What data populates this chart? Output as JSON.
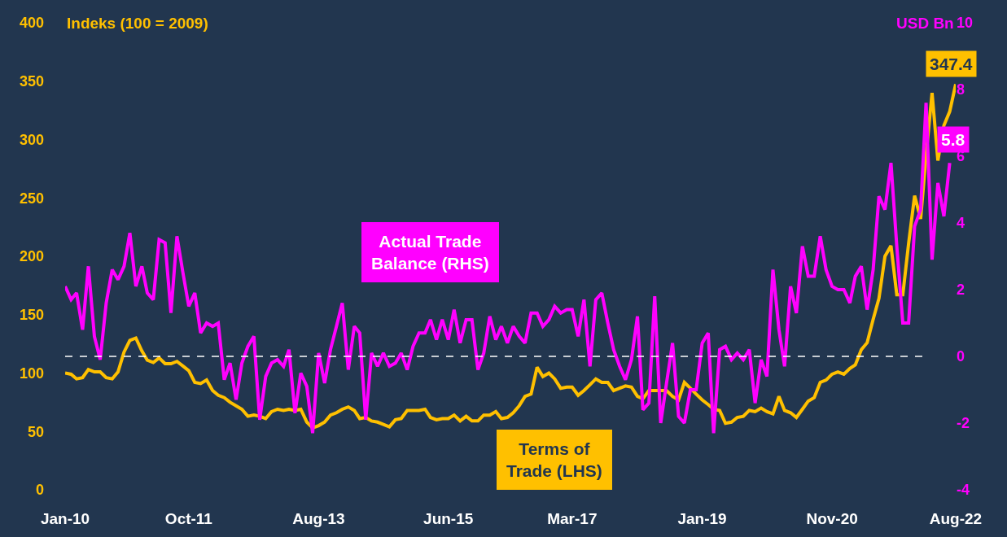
{
  "chart_data": {
    "type": "line",
    "ylabel": "Indeks (100 = 2009)",
    "y2label": "USD Bn",
    "x": [
      "2010-01",
      "2010-02",
      "2010-03",
      "2010-04",
      "2010-05",
      "2010-06",
      "2010-07",
      "2010-08",
      "2010-09",
      "2010-10",
      "2010-11",
      "2010-12",
      "2011-01",
      "2011-02",
      "2011-03",
      "2011-04",
      "2011-05",
      "2011-06",
      "2011-07",
      "2011-08",
      "2011-09",
      "2011-10",
      "2011-11",
      "2011-12",
      "2012-01",
      "2012-02",
      "2012-03",
      "2012-04",
      "2012-05",
      "2012-06",
      "2012-07",
      "2012-08",
      "2012-09",
      "2012-10",
      "2012-11",
      "2012-12",
      "2013-01",
      "2013-02",
      "2013-03",
      "2013-04",
      "2013-05",
      "2013-06",
      "2013-07",
      "2013-08",
      "2013-09",
      "2013-10",
      "2013-11",
      "2013-12",
      "2014-01",
      "2014-02",
      "2014-03",
      "2014-04",
      "2014-05",
      "2014-06",
      "2014-07",
      "2014-08",
      "2014-09",
      "2014-10",
      "2014-11",
      "2014-12",
      "2015-01",
      "2015-02",
      "2015-03",
      "2015-04",
      "2015-05",
      "2015-06",
      "2015-07",
      "2015-08",
      "2015-09",
      "2015-10",
      "2015-11",
      "2015-12",
      "2016-01",
      "2016-02",
      "2016-03",
      "2016-04",
      "2016-05",
      "2016-06",
      "2016-07",
      "2016-08",
      "2016-09",
      "2016-10",
      "2016-11",
      "2016-12",
      "2017-01",
      "2017-02",
      "2017-03",
      "2017-04",
      "2017-05",
      "2017-06",
      "2017-07",
      "2017-08",
      "2017-09",
      "2017-10",
      "2017-11",
      "2017-12",
      "2018-01",
      "2018-02",
      "2018-03",
      "2018-04",
      "2018-05",
      "2018-06",
      "2018-07",
      "2018-08",
      "2018-09",
      "2018-10",
      "2018-11",
      "2018-12",
      "2019-01",
      "2019-02",
      "2019-03",
      "2019-04",
      "2019-05",
      "2019-06",
      "2019-07",
      "2019-08",
      "2019-09",
      "2019-10",
      "2019-11",
      "2019-12",
      "2020-01",
      "2020-02",
      "2020-03",
      "2020-04",
      "2020-05",
      "2020-06",
      "2020-07",
      "2020-08",
      "2020-09",
      "2020-10",
      "2020-11",
      "2020-12",
      "2021-01",
      "2021-02",
      "2021-03",
      "2021-04",
      "2021-05",
      "2021-06",
      "2021-07",
      "2021-08",
      "2021-09",
      "2021-10",
      "2021-11",
      "2021-12",
      "2022-01",
      "2022-02",
      "2022-03",
      "2022-04",
      "2022-05",
      "2022-06",
      "2022-07",
      "2022-08"
    ],
    "xlim": [
      "2010-01",
      "2022-08"
    ],
    "xticks": [
      {
        "value": "2010-01",
        "label": "Jan-10"
      },
      {
        "value": "2011-10",
        "label": "Oct-11"
      },
      {
        "value": "2013-08",
        "label": "Aug-13"
      },
      {
        "value": "2015-06",
        "label": "Jun-15"
      },
      {
        "value": "2017-03",
        "label": "Mar-17"
      },
      {
        "value": "2019-01",
        "label": "Jan-19"
      },
      {
        "value": "2020-11",
        "label": "Nov-20"
      },
      {
        "value": "2022-08",
        "label": "Aug-22"
      }
    ],
    "ylim": [
      0,
      400
    ],
    "yticks": [
      0,
      50,
      100,
      150,
      200,
      250,
      300,
      350,
      400
    ],
    "y2lim": [
      -4,
      10
    ],
    "y2ticks": [
      -4,
      -2,
      0,
      2,
      4,
      6,
      8,
      10
    ],
    "grid": false,
    "legend": false,
    "marker": "none",
    "line_style": "solid",
    "ref_lines": [
      {
        "axis": "y2",
        "value": 0,
        "color": "#ffffff",
        "line_style": "dashed"
      }
    ],
    "series": [
      {
        "name": "Terms of Trade (LHS)",
        "color": "#ffc000",
        "values": [
          100,
          99,
          95,
          96,
          103,
          101,
          101,
          96,
          95,
          101,
          118,
          128,
          130,
          119,
          111,
          109,
          113,
          108,
          108,
          110,
          106,
          102,
          92,
          91,
          94,
          85,
          81,
          79,
          75,
          72,
          69,
          63,
          64,
          63,
          61,
          67,
          69,
          68,
          69,
          68,
          69,
          58,
          53,
          55,
          58,
          64,
          66,
          69,
          71,
          68,
          61,
          62,
          59,
          58,
          56,
          54,
          60,
          61,
          68,
          68,
          68,
          69,
          62,
          60,
          61,
          61,
          64,
          59,
          63,
          59,
          59,
          64,
          64,
          67,
          61,
          62,
          66,
          72,
          80,
          82,
          105,
          97,
          100,
          95,
          87,
          88,
          88,
          81,
          85,
          90,
          95,
          92,
          92,
          85,
          87,
          89,
          88,
          80,
          78,
          85,
          85,
          85,
          85,
          80,
          77,
          92,
          87,
          82,
          77,
          73,
          69,
          68,
          57,
          58,
          62,
          63,
          68,
          67,
          70,
          67,
          65,
          80,
          68,
          66,
          62,
          69,
          76,
          79,
          92,
          94,
          99,
          101,
          99,
          104,
          107,
          120,
          126,
          146,
          164,
          200,
          209,
          167,
          167,
          211,
          252,
          232,
          286,
          340,
          282,
          312,
          324,
          347.4
        ],
        "value_labels": [
          null,
          null,
          null,
          null,
          null,
          null,
          null,
          null,
          null,
          null,
          null,
          null,
          null,
          null,
          null,
          null,
          null,
          null,
          null,
          null,
          null,
          null,
          null,
          null,
          null,
          null,
          null,
          null,
          null,
          null,
          null,
          null,
          null,
          null,
          null,
          null,
          null,
          null,
          null,
          null,
          null,
          null,
          null,
          null,
          null,
          null,
          null,
          null,
          null,
          null,
          null,
          null,
          null,
          null,
          null,
          null,
          null,
          null,
          null,
          null,
          null,
          null,
          null,
          null,
          null,
          null,
          null,
          null,
          null,
          null,
          null,
          null,
          null,
          null,
          null,
          null,
          null,
          null,
          null,
          null,
          null,
          null,
          null,
          null,
          null,
          null,
          null,
          null,
          null,
          null,
          null,
          null,
          null,
          null,
          null,
          null,
          null,
          null,
          null,
          null,
          null,
          null,
          null,
          null,
          null,
          null,
          null,
          null,
          null,
          null,
          null,
          null,
          null,
          null,
          null,
          null,
          null,
          null,
          null,
          null,
          null,
          null,
          null,
          null,
          null,
          null,
          null,
          null,
          null,
          null,
          null,
          null,
          null,
          null,
          null,
          null,
          null,
          null,
          null,
          null,
          null,
          null,
          null,
          null,
          null,
          null,
          null,
          null,
          null,
          null,
          null,
          "347.4"
        ]
      },
      {
        "name": "Actual Trade Balance (RHS)",
        "color": "#ff00ff",
        "axis": "y2",
        "values": [
          2.1,
          1.7,
          1.9,
          0.8,
          2.7,
          0.6,
          -0.1,
          1.6,
          2.6,
          2.3,
          2.7,
          3.7,
          2.1,
          2.7,
          1.9,
          1.7,
          3.5,
          3.4,
          1.3,
          3.6,
          2.5,
          1.5,
          1.9,
          0.7,
          1.0,
          0.9,
          1.0,
          -0.7,
          -0.2,
          -1.3,
          -0.2,
          0.3,
          0.6,
          -1.9,
          -0.6,
          -0.2,
          -0.1,
          -0.3,
          0.2,
          -1.7,
          -0.5,
          -0.9,
          -2.3,
          0.1,
          -0.8,
          0.2,
          0.9,
          1.6,
          -0.4,
          0.9,
          0.7,
          -1.9,
          0.1,
          -0.3,
          0.1,
          -0.3,
          -0.2,
          0.1,
          -0.4,
          0.3,
          0.7,
          0.7,
          1.1,
          0.5,
          1.1,
          0.5,
          1.4,
          0.4,
          1.1,
          1.1,
          -0.4,
          0.1,
          1.2,
          0.5,
          0.9,
          0.4,
          0.9,
          0.6,
          0.4,
          1.3,
          1.3,
          0.9,
          1.1,
          1.5,
          1.3,
          1.4,
          1.4,
          0.6,
          1.7,
          -0.3,
          1.7,
          1.9,
          1.0,
          0.2,
          -0.3,
          -0.7,
          -0.1,
          1.2,
          -1.6,
          -1.4,
          1.8,
          -2.0,
          -0.8,
          0.4,
          -1.8,
          -2.0,
          -1.0,
          -1.0,
          0.4,
          0.7,
          -2.3,
          0.2,
          0.3,
          -0.1,
          0.1,
          -0.1,
          0.2,
          -1.4,
          -0.1,
          -0.6,
          2.6,
          0.8,
          -0.3,
          2.1,
          1.3,
          3.3,
          2.4,
          2.4,
          3.6,
          2.6,
          2.1,
          2.0,
          2.0,
          1.6,
          2.4,
          2.7,
          1.4,
          2.6,
          4.8,
          4.4,
          5.8,
          3.3,
          1.0,
          1.0,
          3.9,
          4.4,
          7.6,
          2.9,
          5.2,
          4.2,
          5.8,
          null
        ],
        "value_labels": [
          null,
          null,
          null,
          null,
          null,
          null,
          null,
          null,
          null,
          null,
          null,
          null,
          null,
          null,
          null,
          null,
          null,
          null,
          null,
          null,
          null,
          null,
          null,
          null,
          null,
          null,
          null,
          null,
          null,
          null,
          null,
          null,
          null,
          null,
          null,
          null,
          null,
          null,
          null,
          null,
          null,
          null,
          null,
          null,
          null,
          null,
          null,
          null,
          null,
          null,
          null,
          null,
          null,
          null,
          null,
          null,
          null,
          null,
          null,
          null,
          null,
          null,
          null,
          null,
          null,
          null,
          null,
          null,
          null,
          null,
          null,
          null,
          null,
          null,
          null,
          null,
          null,
          null,
          null,
          null,
          null,
          null,
          null,
          null,
          null,
          null,
          null,
          null,
          null,
          null,
          null,
          null,
          null,
          null,
          null,
          null,
          null,
          null,
          null,
          null,
          null,
          null,
          null,
          null,
          null,
          null,
          null,
          null,
          null,
          null,
          null,
          null,
          null,
          null,
          null,
          null,
          null,
          null,
          null,
          null,
          null,
          null,
          null,
          null,
          null,
          null,
          null,
          null,
          null,
          null,
          null,
          null,
          null,
          null,
          null,
          null,
          null,
          null,
          null,
          null,
          null,
          null,
          null,
          null,
          null,
          null,
          null,
          null,
          null,
          null,
          "5.8",
          null
        ]
      }
    ]
  }
}
